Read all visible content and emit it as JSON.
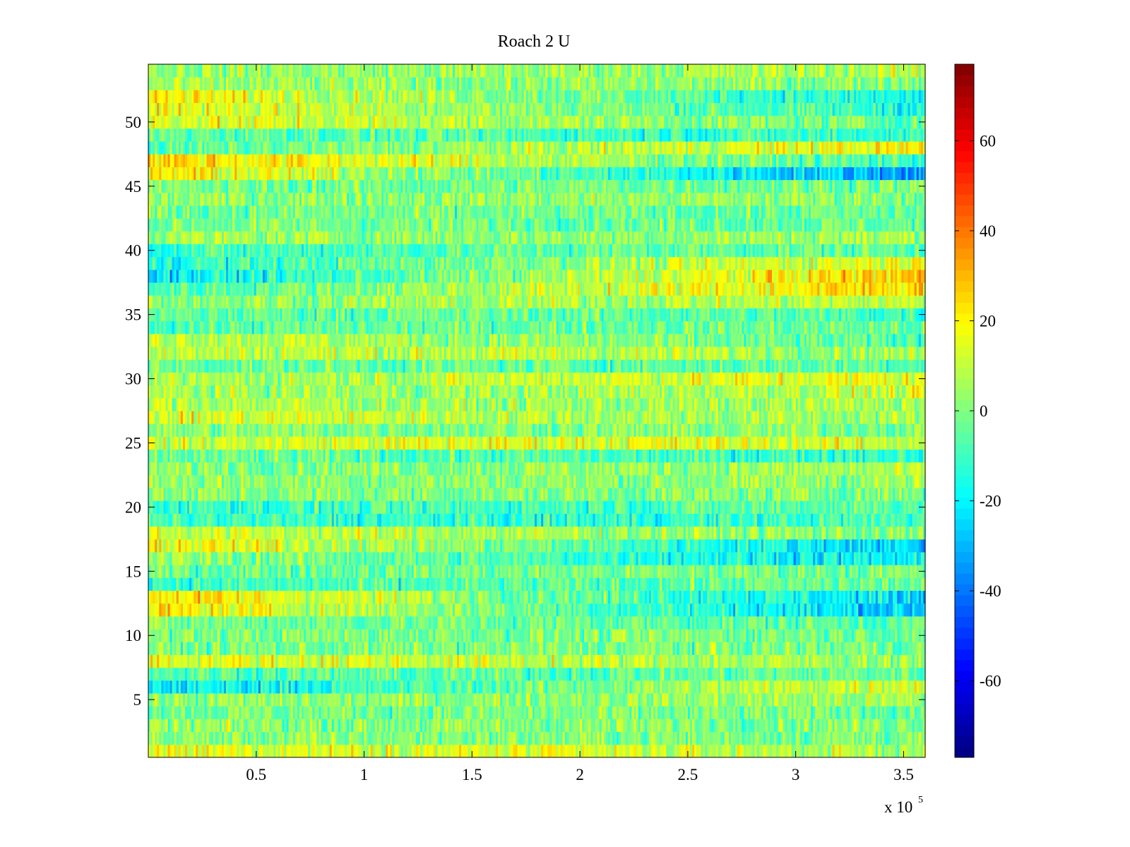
{
  "chart_data": {
    "type": "heatmap",
    "title": "Roach 2 U",
    "xlabel": "",
    "ylabel": "",
    "x_exponent_label": "x 10",
    "x_exponent_power": "5",
    "xlim": [
      0,
      3.6
    ],
    "ylim": [
      0.5,
      54.5
    ],
    "rows": 54,
    "x_ticks": [
      0.5,
      1,
      1.5,
      2,
      2.5,
      3,
      3.5
    ],
    "x_tick_labels": [
      "0.5",
      "1",
      "1.5",
      "2",
      "2.5",
      "3",
      "3.5"
    ],
    "y_ticks": [
      5,
      10,
      15,
      20,
      25,
      30,
      35,
      40,
      45,
      50
    ],
    "y_tick_labels": [
      "5",
      "10",
      "15",
      "20",
      "25",
      "30",
      "35",
      "40",
      "45",
      "50"
    ],
    "colormap": "jet",
    "color_limits": [
      -77,
      77
    ],
    "colorbar_ticks": [
      60,
      40,
      20,
      0,
      -20,
      -40,
      -60
    ],
    "colorbar_tick_labels": [
      "60",
      "40",
      "20",
      "0",
      "-20",
      "-40",
      "-60"
    ],
    "row_trend": [
      {
        "row": 6,
        "start": -22,
        "end": 16
      },
      {
        "row": 12,
        "start": 22,
        "end": -28
      },
      {
        "row": 13,
        "start": 24,
        "end": -25
      },
      {
        "row": 16,
        "start": 4,
        "end": -22
      },
      {
        "row": 17,
        "start": 20,
        "end": -26
      },
      {
        "row": 18,
        "start": 12,
        "end": 0
      },
      {
        "row": 33,
        "start": 12,
        "end": -8
      },
      {
        "row": 37,
        "start": -8,
        "end": 26
      },
      {
        "row": 38,
        "start": -22,
        "end": 28
      },
      {
        "row": 39,
        "start": -14,
        "end": 18
      },
      {
        "row": 46,
        "start": 22,
        "end": -34
      },
      {
        "row": 47,
        "start": 26,
        "end": -10
      },
      {
        "row": 48,
        "start": -8,
        "end": 20
      },
      {
        "row": 50,
        "start": 16,
        "end": -4
      },
      {
        "row": 51,
        "start": 18,
        "end": -14
      },
      {
        "row": 52,
        "start": 20,
        "end": -18
      }
    ],
    "background_range": [
      -12,
      14
    ],
    "noise_amplitude": 16,
    "columns": 360
  }
}
